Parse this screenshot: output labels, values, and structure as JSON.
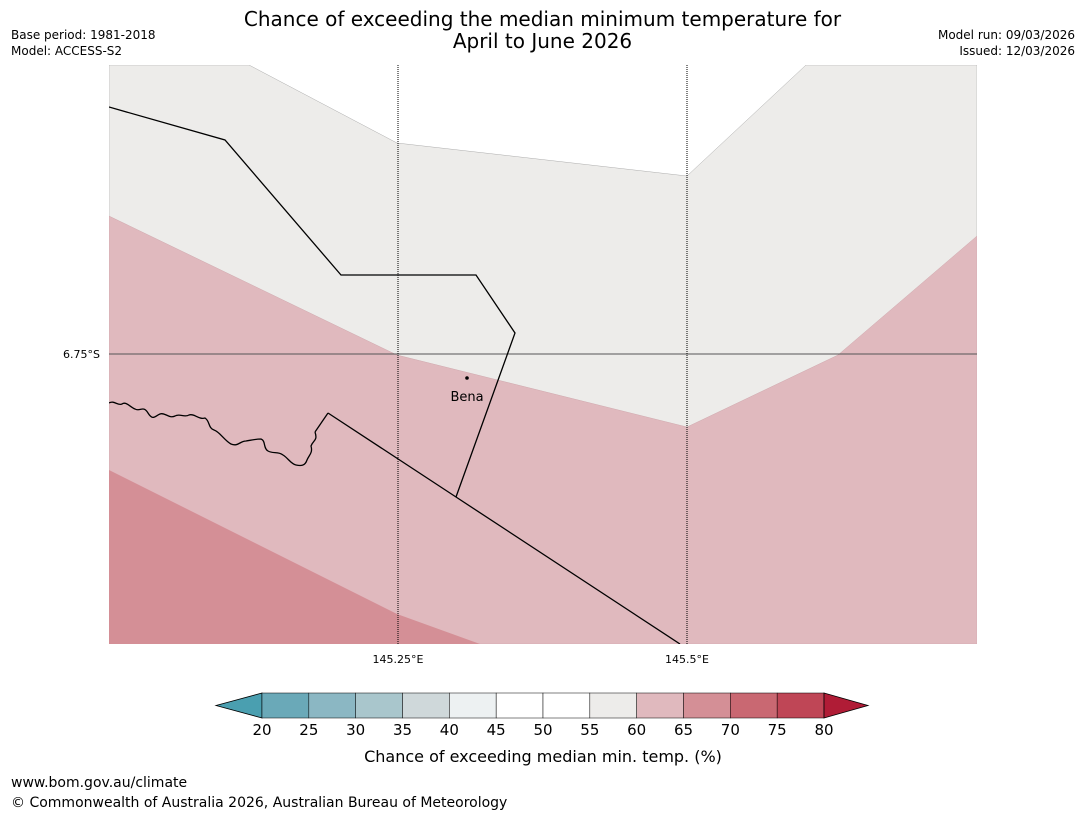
{
  "header": {
    "title_line1": "Chance of exceeding the median minimum temperature for",
    "title_line2": "April to June 2026",
    "base_period": "Base period: 1981-2018",
    "model": "Model: ACCESS-S2",
    "model_run": "Model run: 09/03/2026",
    "issued": "Issued: 12/03/2026"
  },
  "map": {
    "lat_label": "6.75°S",
    "lon_labels": [
      "145.25°E",
      "145.5°E"
    ],
    "place_label": "Bena",
    "colors": {
      "band_55_60": "#edecea",
      "band_60_65": "#e0b9be",
      "band_65_70": "#d48f96",
      "gridline": "#000000",
      "border": "#000000"
    }
  },
  "legend": {
    "ticks": [
      "20",
      "25",
      "30",
      "35",
      "40",
      "45",
      "50",
      "55",
      "60",
      "65",
      "70",
      "75",
      "80"
    ],
    "colors": [
      "#4a9fb0",
      "#6aa9b8",
      "#8bb7c3",
      "#a9c6cc",
      "#cfd8da",
      "#edf1f2",
      "#ffffff",
      "#ffffff",
      "#edecea",
      "#e0b9be",
      "#d48f96",
      "#c96872",
      "#bf4656",
      "#b01c36"
    ],
    "label": "Chance of exceeding median min. temp. (%)"
  },
  "footer": {
    "url": "www.bom.gov.au/climate",
    "copyright": "© Commonwealth of Australia 2026, Australian Bureau of Meteorology"
  }
}
